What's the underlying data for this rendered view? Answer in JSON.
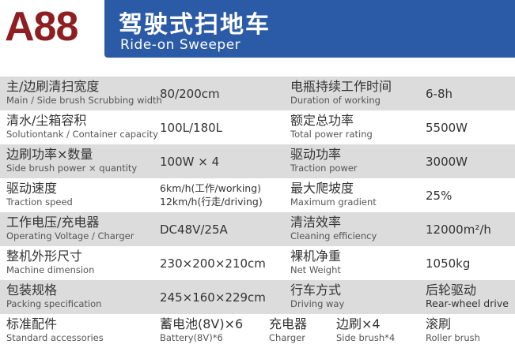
{
  "header": {
    "model": "A88",
    "title_cn": "驾驶式扫地车",
    "title_en": "Ride-on Sweeper",
    "brand_red": "#8e1e22",
    "banner_blue": "#2b5ba6"
  },
  "rows": [
    {
      "l1_cn": "主/边刷清扫宽度",
      "l1_en": "Main / Side brush Scrubbing width",
      "v1": "80/200cm",
      "l2_cn": "电瓶持续工作时间",
      "l2_en": "Duration of working",
      "v2": "6-8h"
    },
    {
      "l1_cn": "清水/尘箱容积",
      "l1_en": "Solutiontank / Container capacity",
      "v1": "100L/180L",
      "l2_cn": "额定总功率",
      "l2_en": "Total power rating",
      "v2": "5500W"
    },
    {
      "l1_cn": "边刷功率×数量",
      "l1_en": "Side brush power × quantity",
      "v1": "100W × 4",
      "l2_cn": "驱动功率",
      "l2_en": "Traction power",
      "v2": "3000W"
    },
    {
      "l1_cn": "驱动速度",
      "l1_en": "Traction speed",
      "v1a": "6km/h(工作/working)",
      "v1b": "12km/h(行走/driving)",
      "l2_cn": "最大爬坡度",
      "l2_en": "Maximum gradient",
      "v2": "25%"
    },
    {
      "l1_cn": "工作电压/充电器",
      "l1_en": "Operating Voltage / Charger",
      "v1": "DC48V/25A",
      "l2_cn": "清洁效率",
      "l2_en": "Cleaning efficiency",
      "v2": "12000m²/h"
    },
    {
      "l1_cn": "整机外形尺寸",
      "l1_en": "Machine dimension",
      "v1": "230×200×210cm",
      "l2_cn": "裸机净重",
      "l2_en": "Net Weight",
      "v2": "1050kg"
    },
    {
      "l1_cn": "包装规格",
      "l1_en": "Packing specification",
      "v1": "245×160×229cm",
      "l2_cn": "行车方式",
      "l2_en": "Driving way",
      "v2_cn": "后轮驱动",
      "v2_en": "Rear-wheel drive"
    }
  ],
  "accessories": {
    "label_cn": "标准配件",
    "label_en": "Standard accessories",
    "items": [
      {
        "cn": "蓄电池(8V)×6",
        "en": "Battery(8V)*6"
      },
      {
        "cn": "充电器",
        "en": "Charger"
      },
      {
        "cn": "边刷×4",
        "en": "Side brush*4"
      },
      {
        "cn": "滚刷",
        "en": "Roller brush"
      }
    ]
  }
}
